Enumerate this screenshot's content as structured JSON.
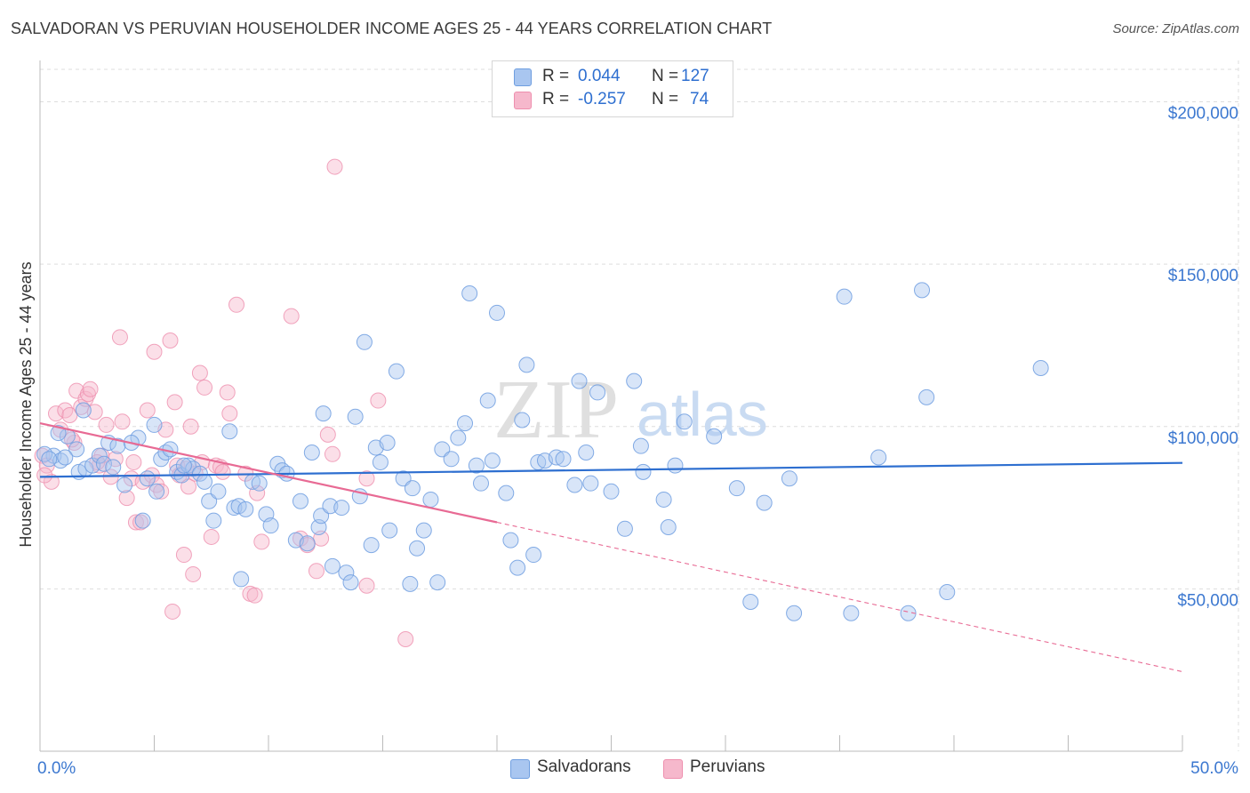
{
  "title": "SALVADORAN VS PERUVIAN HOUSEHOLDER INCOME AGES 25 - 44 YEARS CORRELATION CHART",
  "source": "Source: ZipAtlas.com",
  "watermark": {
    "zip": "ZIP",
    "atlas": "atlas"
  },
  "legend": {
    "rows": [
      {
        "r_label": "R =",
        "r_value": "0.044",
        "n_label": "N =",
        "n_value": "127"
      },
      {
        "r_label": "R =",
        "r_value": "-0.257",
        "n_label": "N =",
        "n_value": "74"
      }
    ]
  },
  "bottom_legend": {
    "salvadorans": "Salvadorans",
    "peruvians": "Peruvians"
  },
  "colors": {
    "blue_fill": "#a9c6f0",
    "blue_stroke": "#6f9ee0",
    "blue_line": "#2e6fd0",
    "pink_fill": "#f6b8cc",
    "pink_stroke": "#ee8fae",
    "pink_line": "#e86a94",
    "tick_label": "#3c78d0",
    "grid": "#dddddd"
  },
  "chart_data": {
    "type": "scatter",
    "title": "SALVADORAN VS PERUVIAN HOUSEHOLDER INCOME AGES 25 - 44 YEARS CORRELATION CHART",
    "xlabel": "",
    "ylabel": "Householder Income Ages 25 - 44 years",
    "xlim": [
      0,
      50
    ],
    "ylim": [
      0,
      210000
    ],
    "x_tick_labels": [
      "0.0%",
      "50.0%"
    ],
    "y_ticks": [
      50000,
      100000,
      150000,
      200000
    ],
    "y_tick_labels": [
      "$50,000",
      "$100,000",
      "$150,000",
      "$200,000"
    ],
    "grid": true,
    "legend_position": "top-center",
    "series": [
      {
        "name": "Salvadorans",
        "color": "#a9c6f0",
        "trend": {
          "x": [
            0,
            50
          ],
          "y": [
            84500,
            88800
          ]
        },
        "points": [
          [
            0.6,
            91000
          ],
          [
            0.9,
            89500
          ],
          [
            1.2,
            97000
          ],
          [
            1.6,
            93000
          ],
          [
            1.7,
            86000
          ],
          [
            1.9,
            105000
          ],
          [
            2.0,
            87000
          ],
          [
            2.3,
            88000
          ],
          [
            2.6,
            91000
          ],
          [
            2.8,
            88500
          ],
          [
            3.0,
            95000
          ],
          [
            3.2,
            87500
          ],
          [
            3.4,
            94000
          ],
          [
            3.7,
            82000
          ],
          [
            4.3,
            96500
          ],
          [
            4.5,
            71000
          ],
          [
            4.7,
            84000
          ],
          [
            5.0,
            100500
          ],
          [
            5.1,
            80000
          ],
          [
            5.3,
            90000
          ],
          [
            5.5,
            92000
          ],
          [
            5.7,
            93000
          ],
          [
            6.0,
            86000
          ],
          [
            6.2,
            85000
          ],
          [
            6.5,
            88000
          ],
          [
            6.7,
            87000
          ],
          [
            7.0,
            85500
          ],
          [
            7.2,
            83000
          ],
          [
            7.4,
            77000
          ],
          [
            7.6,
            71000
          ],
          [
            7.8,
            80000
          ],
          [
            8.3,
            98500
          ],
          [
            8.5,
            75000
          ],
          [
            8.7,
            75500
          ],
          [
            8.8,
            53000
          ],
          [
            9.3,
            83000
          ],
          [
            9.6,
            82500
          ],
          [
            9.9,
            73000
          ],
          [
            10.1,
            69500
          ],
          [
            10.4,
            88500
          ],
          [
            10.6,
            86500
          ],
          [
            10.8,
            85500
          ],
          [
            11.2,
            65000
          ],
          [
            11.4,
            77000
          ],
          [
            11.7,
            64000
          ],
          [
            11.9,
            92000
          ],
          [
            12.2,
            69000
          ],
          [
            12.3,
            72500
          ],
          [
            12.4,
            104000
          ],
          [
            12.7,
            75500
          ],
          [
            12.8,
            57000
          ],
          [
            13.2,
            75000
          ],
          [
            13.4,
            55000
          ],
          [
            13.6,
            52000
          ],
          [
            13.8,
            103000
          ],
          [
            14.0,
            78500
          ],
          [
            14.2,
            126000
          ],
          [
            14.5,
            63500
          ],
          [
            14.7,
            93500
          ],
          [
            14.9,
            89000
          ],
          [
            15.3,
            68000
          ],
          [
            15.6,
            117000
          ],
          [
            15.9,
            84000
          ],
          [
            16.2,
            51500
          ],
          [
            16.3,
            81000
          ],
          [
            16.5,
            62500
          ],
          [
            16.8,
            68000
          ],
          [
            17.1,
            77500
          ],
          [
            17.4,
            52000
          ],
          [
            17.6,
            93000
          ],
          [
            18.0,
            90000
          ],
          [
            18.3,
            96500
          ],
          [
            18.6,
            101000
          ],
          [
            18.8,
            141000
          ],
          [
            19.1,
            88000
          ],
          [
            19.3,
            82500
          ],
          [
            19.6,
            108000
          ],
          [
            19.8,
            89500
          ],
          [
            20.0,
            135000
          ],
          [
            20.4,
            79500
          ],
          [
            20.6,
            65000
          ],
          [
            20.9,
            56500
          ],
          [
            21.1,
            102000
          ],
          [
            21.3,
            119000
          ],
          [
            21.6,
            60500
          ],
          [
            21.8,
            89000
          ],
          [
            22.1,
            89500
          ],
          [
            22.6,
            90500
          ],
          [
            22.9,
            90000
          ],
          [
            23.4,
            82000
          ],
          [
            23.6,
            114000
          ],
          [
            23.9,
            92000
          ],
          [
            24.1,
            82500
          ],
          [
            24.4,
            110500
          ],
          [
            25.0,
            80000
          ],
          [
            25.6,
            68500
          ],
          [
            26.0,
            114000
          ],
          [
            26.3,
            94000
          ],
          [
            26.4,
            86000
          ],
          [
            27.3,
            77500
          ],
          [
            27.5,
            69000
          ],
          [
            27.8,
            88000
          ],
          [
            28.2,
            101500
          ],
          [
            29.5,
            97000
          ],
          [
            30.5,
            81000
          ],
          [
            31.1,
            46000
          ],
          [
            31.7,
            76500
          ],
          [
            32.8,
            84000
          ],
          [
            33.0,
            42500
          ],
          [
            35.2,
            140000
          ],
          [
            35.5,
            42500
          ],
          [
            36.7,
            90500
          ],
          [
            38.0,
            42500
          ],
          [
            38.6,
            142000
          ],
          [
            38.8,
            109000
          ],
          [
            39.7,
            49000
          ],
          [
            43.8,
            118000
          ],
          [
            0.2,
            91500
          ],
          [
            0.4,
            90000
          ],
          [
            0.8,
            98000
          ],
          [
            1.1,
            90500
          ],
          [
            4.0,
            95000
          ],
          [
            6.3,
            88000
          ],
          [
            9.0,
            74500
          ],
          [
            15.2,
            95000
          ]
        ]
      },
      {
        "name": "Peruvians",
        "color": "#f6b8cc",
        "trend": {
          "x": [
            0,
            20
          ],
          "y": [
            101000,
            70500
          ],
          "dashed_to": {
            "x": 50,
            "y": 24500
          }
        },
        "points": [
          [
            0.1,
            91000
          ],
          [
            0.3,
            88000
          ],
          [
            0.5,
            83000
          ],
          [
            0.7,
            104000
          ],
          [
            0.9,
            99000
          ],
          [
            1.1,
            105000
          ],
          [
            1.3,
            103500
          ],
          [
            1.5,
            95000
          ],
          [
            1.6,
            111000
          ],
          [
            1.8,
            106000
          ],
          [
            2.0,
            108500
          ],
          [
            2.1,
            110000
          ],
          [
            2.2,
            111500
          ],
          [
            2.4,
            104500
          ],
          [
            2.6,
            88000
          ],
          [
            2.7,
            91000
          ],
          [
            2.9,
            100500
          ],
          [
            3.1,
            84500
          ],
          [
            3.3,
            90000
          ],
          [
            3.5,
            127500
          ],
          [
            3.6,
            101500
          ],
          [
            3.8,
            78000
          ],
          [
            4.0,
            84000
          ],
          [
            4.1,
            89000
          ],
          [
            4.2,
            70500
          ],
          [
            4.4,
            70500
          ],
          [
            4.5,
            83000
          ],
          [
            4.7,
            105000
          ],
          [
            4.9,
            85000
          ],
          [
            5.0,
            123000
          ],
          [
            5.1,
            82000
          ],
          [
            5.3,
            80000
          ],
          [
            5.5,
            99000
          ],
          [
            5.7,
            126500
          ],
          [
            5.9,
            107500
          ],
          [
            6.0,
            88000
          ],
          [
            6.1,
            85000
          ],
          [
            6.3,
            60500
          ],
          [
            6.5,
            81500
          ],
          [
            6.6,
            100000
          ],
          [
            6.7,
            54500
          ],
          [
            6.8,
            85500
          ],
          [
            7.0,
            116500
          ],
          [
            7.1,
            89000
          ],
          [
            7.2,
            112000
          ],
          [
            7.5,
            66000
          ],
          [
            7.7,
            88000
          ],
          [
            7.9,
            87500
          ],
          [
            8.2,
            110500
          ],
          [
            8.3,
            104000
          ],
          [
            8.6,
            137500
          ],
          [
            9.0,
            85500
          ],
          [
            9.2,
            48500
          ],
          [
            9.5,
            79500
          ],
          [
            9.7,
            64500
          ],
          [
            11.0,
            134000
          ],
          [
            11.4,
            65500
          ],
          [
            11.7,
            63500
          ],
          [
            12.1,
            55500
          ],
          [
            12.3,
            65500
          ],
          [
            12.6,
            97500
          ],
          [
            12.8,
            91500
          ],
          [
            12.9,
            180000
          ],
          [
            14.3,
            84000
          ],
          [
            14.3,
            51000
          ],
          [
            14.8,
            108000
          ],
          [
            16.0,
            34500
          ],
          [
            8.0,
            86000
          ],
          [
            1.4,
            96000
          ],
          [
            2.5,
            89000
          ],
          [
            5.8,
            43000
          ],
          [
            6.4,
            87000
          ],
          [
            9.4,
            48000
          ],
          [
            0.2,
            85000
          ]
        ]
      }
    ]
  }
}
